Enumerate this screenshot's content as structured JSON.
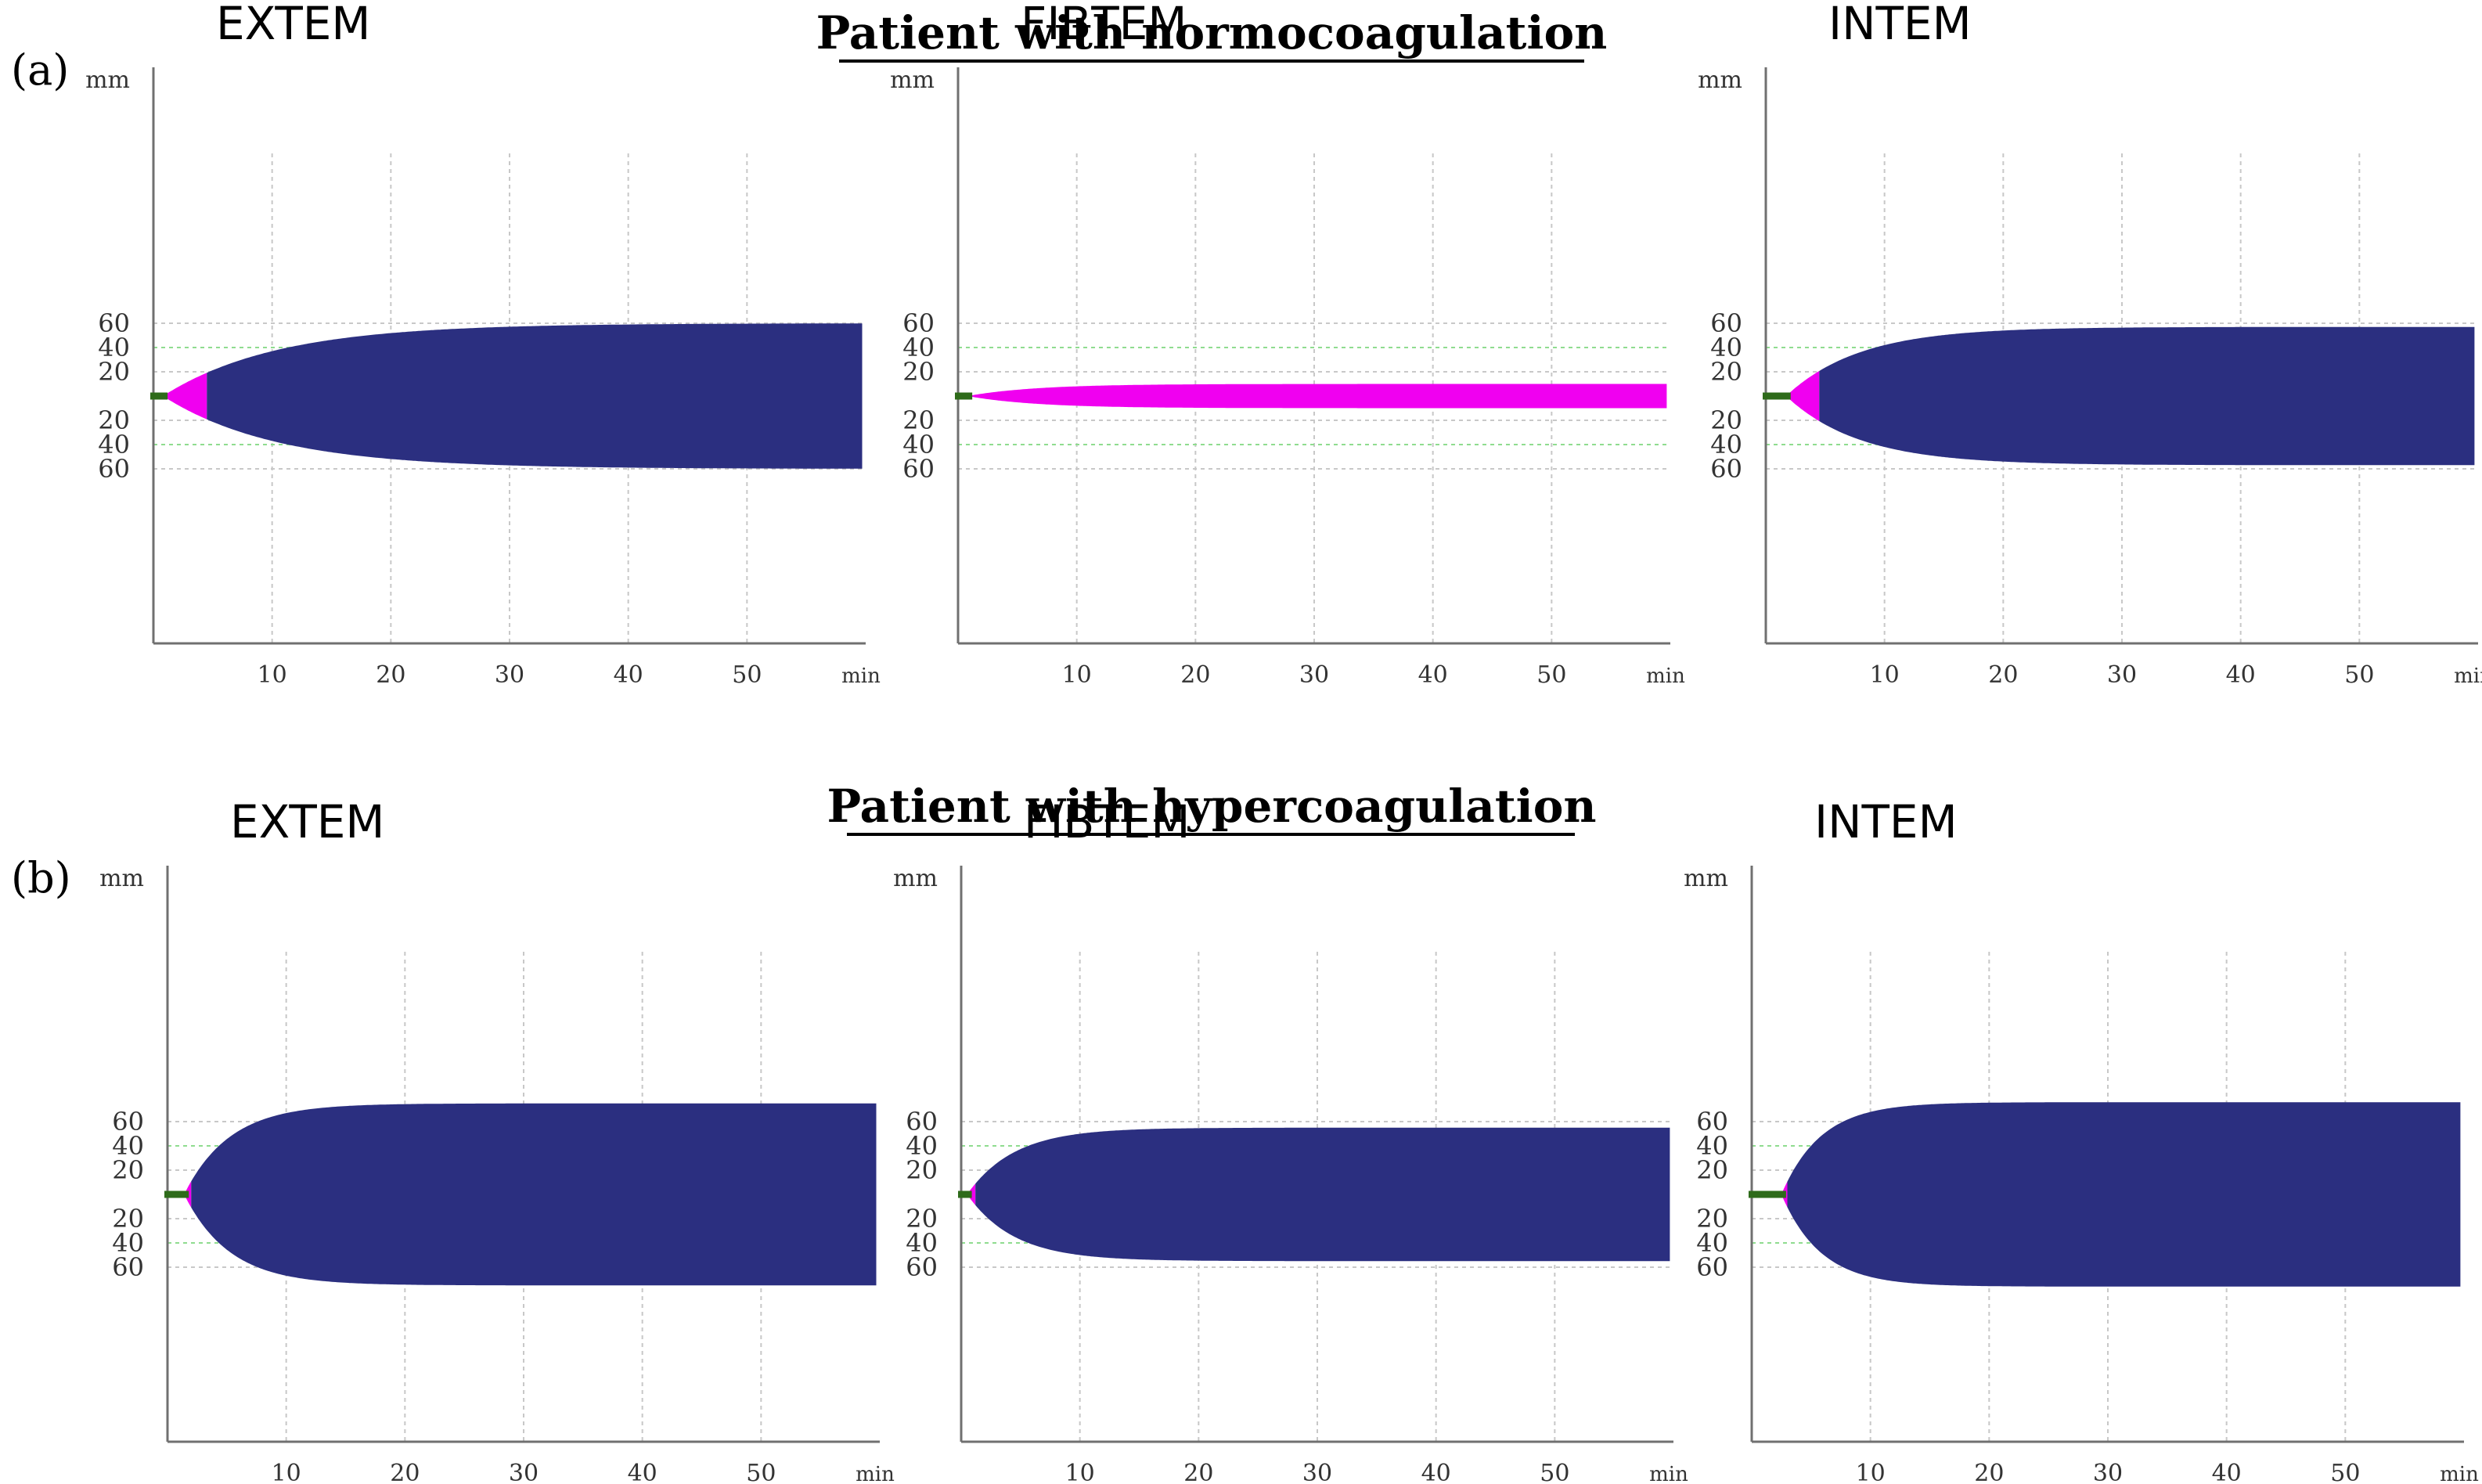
{
  "figure": {
    "panel_a_label": "(a)",
    "panel_b_label": "(b)",
    "section_a_title": "Patient with normocoagulation",
    "section_b_title": "Patient with hypercoagulation",
    "colors": {
      "clot_early": "#f000f0",
      "clot_main": "#2b2f80",
      "baseline": "#2e6b1a",
      "grid": "#c8c8c8",
      "ref_line": "#8fdc8f",
      "axis": "#707070"
    }
  },
  "chart_data": [
    {
      "type": "area",
      "panel": "a",
      "title": "EXTEM",
      "ylabel": "mm",
      "xlabel": "min",
      "xlim": [
        0,
        60
      ],
      "x_ticks": [
        10,
        20,
        30,
        40,
        50
      ],
      "y_tick_labels": [
        "60",
        "40",
        "20",
        "20",
        "40",
        "60"
      ],
      "ref_lines_mm": [
        40
      ],
      "clot_time_min": 0.8,
      "phase_switch_min": 4.5,
      "phase_switch_amplitude_mm": 20,
      "amplitude_at_10_min_mm": 37,
      "max_amplitude_mm": 60
    },
    {
      "type": "area",
      "panel": "a",
      "title": "FIBTEM",
      "ylabel": "mm",
      "xlabel": "min",
      "xlim": [
        0,
        60
      ],
      "x_ticks": [
        10,
        20,
        30,
        40,
        50
      ],
      "y_tick_labels": [
        "60",
        "40",
        "20",
        "20",
        "40",
        "60"
      ],
      "ref_lines_mm": [
        40
      ],
      "clot_time_min": 0.8,
      "phase_switch_min": null,
      "phase_switch_amplitude_mm": null,
      "amplitude_at_10_min_mm": 8,
      "max_amplitude_mm": 10
    },
    {
      "type": "area",
      "panel": "a",
      "title": "INTEM",
      "ylabel": "mm",
      "xlabel": "min",
      "xlim": [
        0,
        60
      ],
      "x_ticks": [
        10,
        20,
        30,
        40,
        50
      ],
      "y_tick_labels": [
        "60",
        "40",
        "20",
        "20",
        "40",
        "60"
      ],
      "ref_lines_mm": [
        40
      ],
      "clot_time_min": 1.7,
      "phase_switch_min": 4.5,
      "phase_switch_amplitude_mm": 20,
      "amplitude_at_10_min_mm": 42,
      "max_amplitude_mm": 57
    },
    {
      "type": "area",
      "panel": "b",
      "title": "EXTEM",
      "ylabel": "mm",
      "xlabel": "min",
      "xlim": [
        0,
        60
      ],
      "x_ticks": [
        10,
        20,
        30,
        40,
        50
      ],
      "y_tick_labels": [
        "60",
        "40",
        "20",
        "20",
        "40",
        "60"
      ],
      "ref_lines_mm": [
        40
      ],
      "clot_time_min": 1.4,
      "phase_switch_min": 2.0,
      "phase_switch_amplitude_mm": 20,
      "amplitude_at_10_min_mm": 67,
      "max_amplitude_mm": 75
    },
    {
      "type": "area",
      "panel": "b",
      "title": "FIBTEM",
      "ylabel": "mm",
      "xlabel": "min",
      "xlim": [
        0,
        60
      ],
      "x_ticks": [
        10,
        20,
        30,
        40,
        50
      ],
      "y_tick_labels": [
        "60",
        "40",
        "20",
        "20",
        "40",
        "60"
      ],
      "ref_lines_mm": [
        40
      ],
      "clot_time_min": 0.5,
      "phase_switch_min": 1.2,
      "phase_switch_amplitude_mm": 20,
      "amplitude_at_10_min_mm": 50,
      "max_amplitude_mm": 55
    },
    {
      "type": "area",
      "panel": "b",
      "title": "INTEM",
      "ylabel": "mm",
      "xlabel": "min",
      "xlim": [
        0,
        60
      ],
      "x_ticks": [
        10,
        20,
        30,
        40,
        50
      ],
      "y_tick_labels": [
        "60",
        "40",
        "20",
        "20",
        "40",
        "60"
      ],
      "ref_lines_mm": [
        40
      ],
      "clot_time_min": 2.5,
      "phase_switch_min": 3.0,
      "phase_switch_amplitude_mm": 20,
      "amplitude_at_10_min_mm": 68,
      "max_amplitude_mm": 76
    }
  ]
}
